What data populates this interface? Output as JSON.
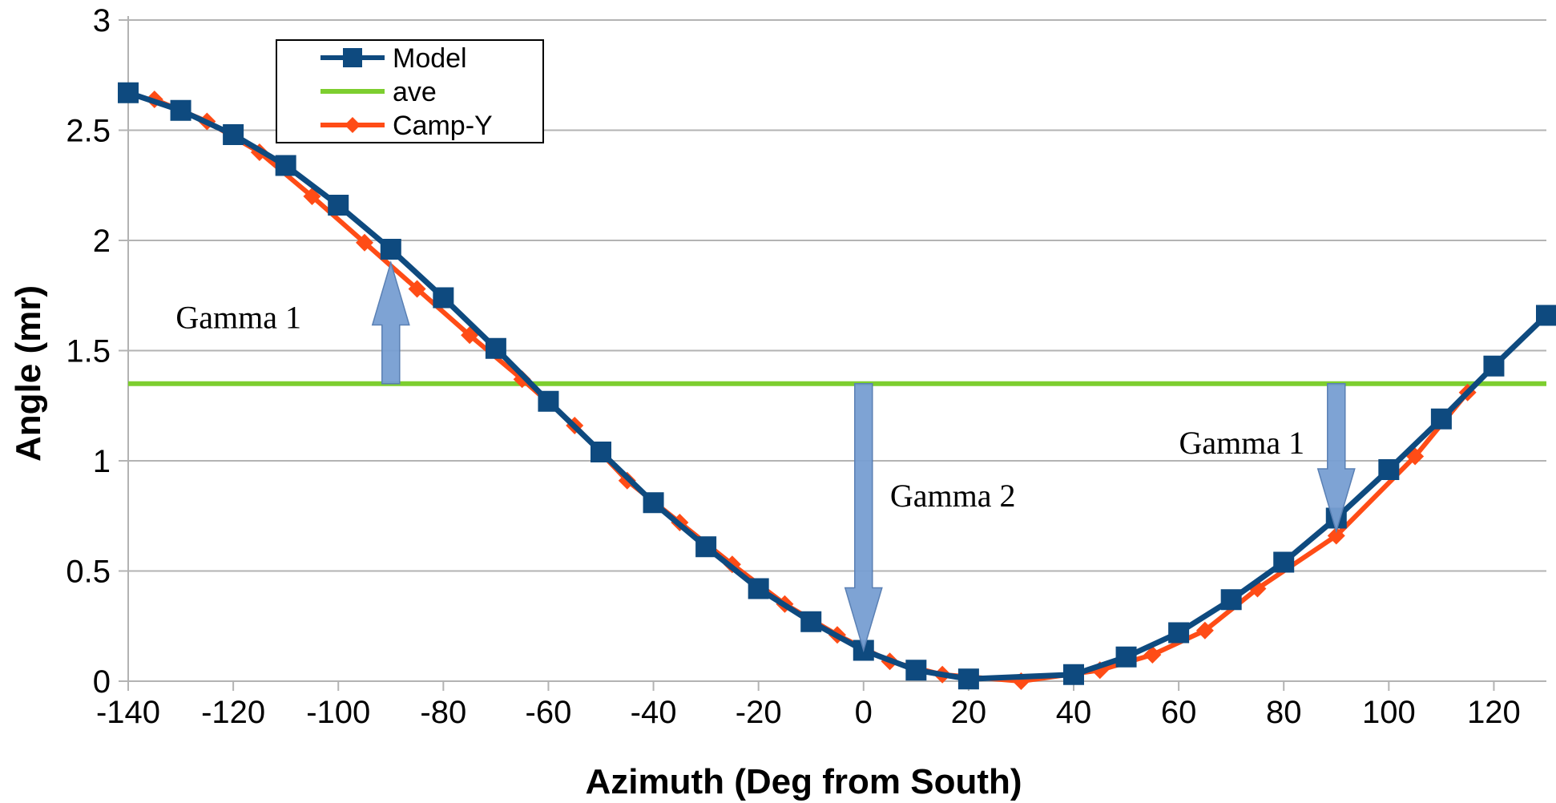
{
  "chart_data": {
    "type": "line",
    "title": "",
    "xlabel": "Azimuth (Deg from South)",
    "ylabel": "Angle (mr)",
    "xlim": [
      -140,
      130
    ],
    "ylim": [
      0,
      3
    ],
    "x_ticks": [
      -140,
      -120,
      -100,
      -80,
      -60,
      -40,
      -20,
      0,
      20,
      40,
      60,
      80,
      100,
      120
    ],
    "y_ticks": [
      0,
      0.5,
      1,
      1.5,
      2,
      2.5,
      3
    ],
    "y_tick_labels": [
      "0",
      "0.5",
      "1",
      "1.5",
      "2",
      "2.5",
      "3"
    ],
    "grid": "horizontal",
    "legend_position": "top-left",
    "series": [
      {
        "name": "Model",
        "color": "#0e4a7f",
        "marker": "square",
        "x": [
          -140,
          -130,
          -120,
          -110,
          -100,
          -90,
          -80,
          -70,
          -60,
          -50,
          -40,
          -30,
          -20,
          -10,
          0,
          10,
          20,
          40,
          50,
          60,
          70,
          80,
          90,
          100,
          110,
          120,
          130
        ],
        "y": [
          2.67,
          2.59,
          2.48,
          2.34,
          2.16,
          1.96,
          1.74,
          1.51,
          1.27,
          1.04,
          0.81,
          0.61,
          0.42,
          0.27,
          0.14,
          0.05,
          0.01,
          0.03,
          0.11,
          0.22,
          0.37,
          0.54,
          0.74,
          0.96,
          1.19,
          1.43,
          1.66
        ]
      },
      {
        "name": "ave",
        "color": "#7dce2f",
        "marker": "none",
        "x": [
          -140,
          130
        ],
        "y": [
          1.35,
          1.35
        ]
      },
      {
        "name": "Camp-Y",
        "color": "#ff4c16",
        "marker": "diamond",
        "x": [
          -135,
          -125,
          -115,
          -105,
          -95,
          -85,
          -75,
          -65,
          -55,
          -45,
          -35,
          -25,
          -15,
          -5,
          5,
          15,
          30,
          45,
          55,
          65,
          75,
          90,
          105,
          115
        ],
        "y": [
          2.64,
          2.54,
          2.4,
          2.2,
          1.99,
          1.78,
          1.57,
          1.37,
          1.16,
          0.91,
          0.72,
          0.53,
          0.35,
          0.21,
          0.09,
          0.03,
          0.0,
          0.05,
          0.12,
          0.23,
          0.42,
          0.66,
          1.02,
          1.31
        ]
      }
    ],
    "annotations": [
      {
        "id": "gamma1-left",
        "text": "Gamma 1",
        "x": -90,
        "arrow_from": 1.35,
        "arrow_to": 1.9,
        "label_x": -119,
        "label_y": 1.65
      },
      {
        "id": "gamma2",
        "text": "Gamma 2",
        "x": 0,
        "arrow_from": 1.35,
        "arrow_to": 0.14,
        "label_x": 17,
        "label_y": 0.84
      },
      {
        "id": "gamma1-right",
        "text": "Gamma 1",
        "x": 90,
        "arrow_from": 1.35,
        "arrow_to": 0.68,
        "label_x": 72,
        "label_y": 1.08
      }
    ]
  }
}
